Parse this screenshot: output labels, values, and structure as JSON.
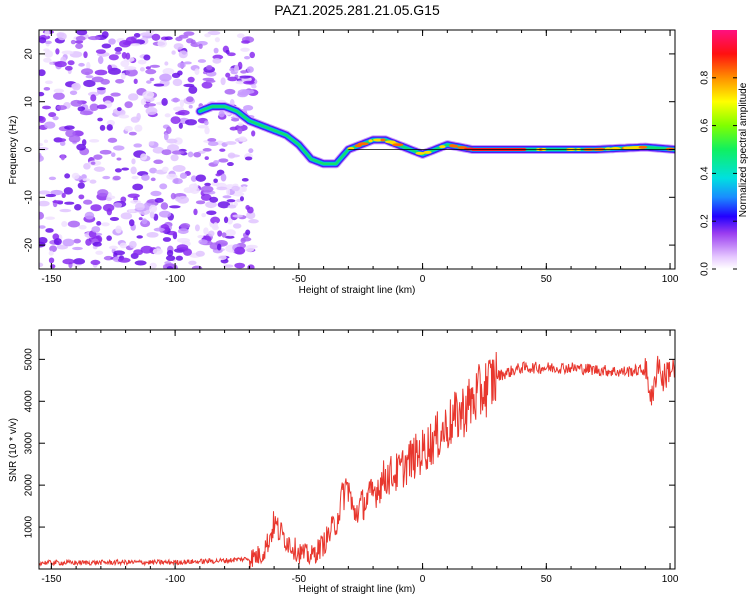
{
  "title": "PAZ1.2025.281.21.05.G15",
  "chart_data": [
    {
      "type": "heatmap",
      "title": "PAZ1.2025.281.21.05.G15",
      "xlabel": "Height of straight line (km)",
      "ylabel": "Frequency (Hz)",
      "xlim": [
        -155,
        102
      ],
      "ylim": [
        -25,
        25
      ],
      "x_ticks": [
        -150,
        -100,
        -50,
        0,
        50,
        100
      ],
      "y_ticks": [
        -20,
        -10,
        0,
        10,
        20
      ],
      "ridge": {
        "x": [
          -90,
          -85,
          -80,
          -75,
          -70,
          -65,
          -60,
          -55,
          -50,
          -45,
          -40,
          -35,
          -30,
          -25,
          -20,
          -15,
          -10,
          -5,
          0,
          5,
          10,
          15,
          20,
          30,
          50,
          70,
          90,
          102
        ],
        "y": [
          8,
          9,
          9,
          8,
          6,
          5,
          4,
          3,
          1,
          -2,
          -3,
          -3,
          0,
          1,
          2,
          2,
          1,
          0,
          -1,
          0,
          1,
          0.5,
          0,
          0,
          0,
          0,
          0.5,
          0
        ]
      },
      "colorbar": {
        "label": "Normalized spectral amplitude",
        "range": [
          0,
          1
        ],
        "ticks": [
          "0.0",
          "0.2",
          "0.4",
          "0.6",
          "0.8"
        ]
      }
    },
    {
      "type": "line",
      "xlabel": "Height of straight line (km)",
      "ylabel": "SNR (10 * v/v)",
      "xlim": [
        -155,
        102
      ],
      "ylim": [
        0,
        5700
      ],
      "x_ticks": [
        -150,
        -100,
        -50,
        0,
        50,
        100
      ],
      "y_ticks": [
        1000,
        2000,
        3000,
        4000,
        5000
      ],
      "series": [
        {
          "name": "SNR",
          "color": "#e8372e",
          "x": [
            -155,
            -140,
            -120,
            -100,
            -80,
            -70,
            -65,
            -62,
            -60,
            -58,
            -55,
            -52,
            -50,
            -45,
            -40,
            -35,
            -32,
            -30,
            -28,
            -25,
            -20,
            -15,
            -10,
            -5,
            0,
            5,
            10,
            15,
            20,
            25,
            30,
            35,
            40,
            50,
            60,
            70,
            80,
            90,
            93,
            95,
            97,
            100,
            102
          ],
          "y": [
            150,
            150,
            160,
            160,
            200,
            250,
            350,
            700,
            1100,
            900,
            700,
            500,
            400,
            300,
            600,
            1100,
            1800,
            2000,
            1300,
            1500,
            1800,
            2200,
            2300,
            2600,
            2800,
            3100,
            3400,
            3700,
            4000,
            4300,
            4600,
            4700,
            4800,
            4800,
            4800,
            4750,
            4700,
            4750,
            4000,
            5000,
            4500,
            4800,
            4700
          ]
        }
      ]
    }
  ]
}
